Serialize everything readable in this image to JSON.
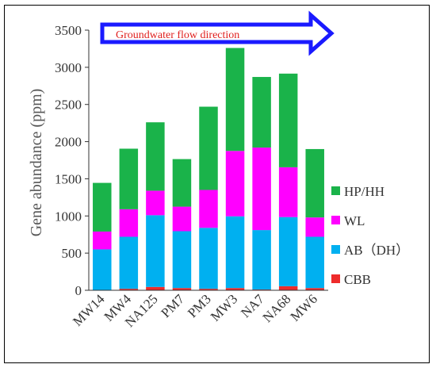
{
  "chart_data": {
    "type": "bar",
    "stacked": true,
    "ylabel": "Gene abundance (ppm)",
    "ylim": [
      0,
      3500
    ],
    "yticks": [
      0,
      500,
      1000,
      1500,
      2000,
      2500,
      3000,
      3500
    ],
    "categories": [
      "MW14",
      "MW4",
      "NA125",
      "PM7",
      "PM3",
      "MW3",
      "NA7",
      "NA68",
      "MW6"
    ],
    "series": [
      {
        "name": "CBB",
        "color": "#ee2b2b",
        "values": [
          5,
          20,
          45,
          30,
          20,
          30,
          10,
          55,
          30
        ]
      },
      {
        "name": "AB（DH）",
        "color": "#00b0f0",
        "values": [
          545,
          700,
          965,
          765,
          820,
          965,
          800,
          930,
          690
        ]
      },
      {
        "name": "WL",
        "color": "#ff00ff",
        "values": [
          240,
          370,
          330,
          330,
          510,
          880,
          1110,
          670,
          260
        ]
      },
      {
        "name": "HP/HH",
        "color": "#1ab34a",
        "values": [
          655,
          815,
          920,
          640,
          1120,
          1385,
          950,
          1260,
          920
        ]
      }
    ],
    "legend_position": "right",
    "legend_order": [
      "HP/HH",
      "WL",
      "AB（DH）",
      "CBB"
    ],
    "annotation": {
      "text": "Groundwater flow direction",
      "text_color": "#e02020",
      "arrow_color": "#1a1aff"
    },
    "grid": false
  }
}
